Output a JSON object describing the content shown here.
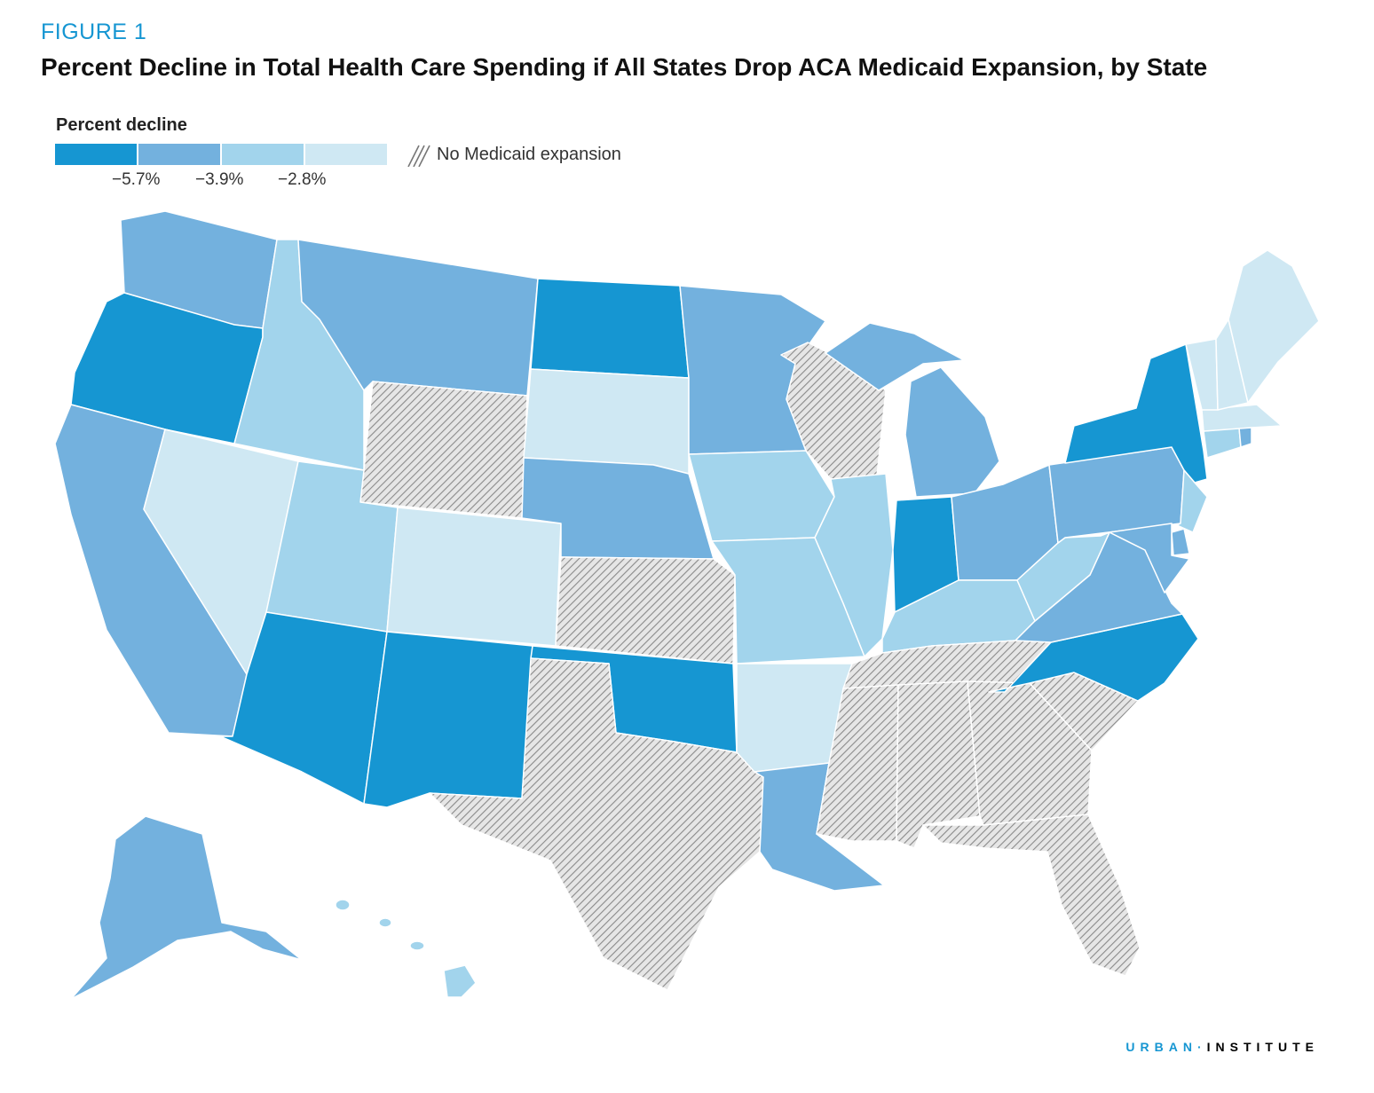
{
  "figure": {
    "label": "FIGURE 1",
    "title": "Percent Decline in Total Health Care Spending if All States Drop ACA Medicaid Expansion, by State"
  },
  "legend": {
    "title": "Percent decline",
    "ticks": [
      "−5.7%",
      "−3.9%",
      "−2.8%"
    ],
    "colors": [
      "#1696d2",
      "#73b1de",
      "#a2d4ec",
      "#cfe8f3"
    ],
    "no_expansion_label": "No Medicaid expansion",
    "no_expansion_color": "#aaaaaa"
  },
  "brand": {
    "part1": "URBAN",
    "separator": "·",
    "part2": "INSTITUTE"
  },
  "chart_data": {
    "type": "choropleth",
    "bins": [
      {
        "tier": 1,
        "label": "below −5.7%",
        "color": "#1696d2"
      },
      {
        "tier": 2,
        "label": "−5.7% to −3.9%",
        "color": "#73b1de"
      },
      {
        "tier": 3,
        "label": "−3.9% to −2.8%",
        "color": "#a2d4ec"
      },
      {
        "tier": 4,
        "label": "above −2.8%",
        "color": "#cfe8f3"
      }
    ],
    "states": {
      "WA": 2,
      "OR": 1,
      "CA": 2,
      "ID": 3,
      "NV": 4,
      "MT": 2,
      "WY": 0,
      "UT": 3,
      "AZ": 1,
      "CO": 4,
      "NM": 1,
      "ND": 1,
      "SD": 4,
      "NE": 2,
      "KS": 0,
      "OK": 1,
      "TX": 0,
      "MN": 2,
      "IA": 3,
      "MO": 3,
      "AR": 4,
      "LA": 2,
      "WI": 0,
      "IL": 3,
      "MI": 2,
      "IN": 1,
      "OH": 2,
      "KY": 3,
      "TN": 0,
      "MS": 0,
      "AL": 0,
      "GA": 0,
      "FL": 0,
      "SC": 0,
      "NC": 1,
      "VA": 2,
      "WV": 3,
      "PA": 2,
      "NY": 1,
      "NJ": 3,
      "DE": 2,
      "MD": 2,
      "CT": 3,
      "RI": 2,
      "MA": 4,
      "VT": 4,
      "NH": 4,
      "ME": 4,
      "AK": 2,
      "HI": 3
    }
  }
}
